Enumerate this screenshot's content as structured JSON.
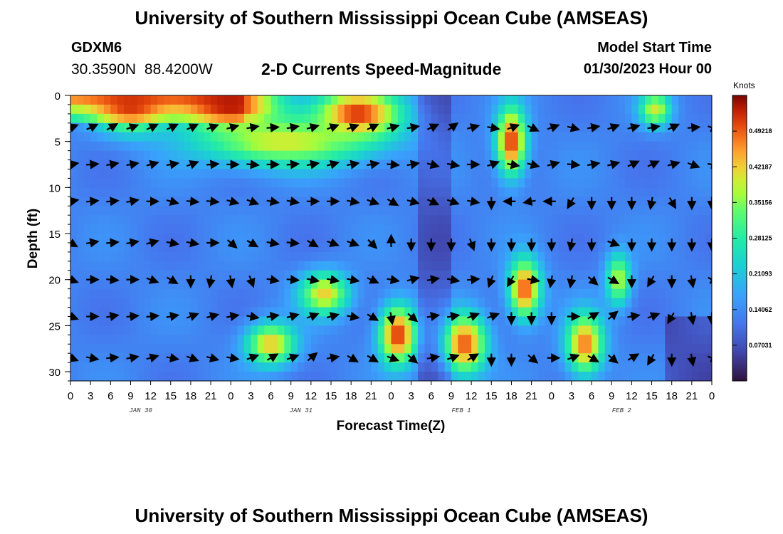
{
  "page": {
    "title": "University of Southern Mississippi Ocean Cube (AMSEAS)",
    "title_repeat": "University of Southern Mississippi Ocean Cube (AMSEAS)",
    "station": "GDXM6",
    "coords": "30.3590N  88.4200W",
    "subtitle": "2-D Currents Speed-Magnitude",
    "start_label": "Model Start Time",
    "start_value": "01/30/2023 Hour 00"
  },
  "chart_data": {
    "type": "heatmap",
    "title": "2-D Currents Speed-Magnitude",
    "xlabel": "Forecast Time(Z)",
    "ylabel": "Depth (ft)",
    "colorbar_title": "Knots",
    "colorbar_ticks": [
      "0.07031",
      "0.14062",
      "0.21093",
      "0.28125",
      "0.35156",
      "0.42187",
      "0.49218"
    ],
    "colorbar_tick_values": [
      0.07031,
      0.14062,
      0.21093,
      0.28125,
      0.35156,
      0.42187,
      0.49218
    ],
    "color_range": [
      0,
      0.5625
    ],
    "x_range_hours": [
      0,
      96
    ],
    "y_range_ft": [
      0,
      31
    ],
    "x_tick_labels": [
      "0",
      "3",
      "6",
      "9",
      "12",
      "15",
      "18",
      "21",
      "0",
      "3",
      "6",
      "9",
      "12",
      "15",
      "18",
      "21",
      "0",
      "3",
      "6",
      "9",
      "12",
      "15",
      "18",
      "21",
      "0",
      "3",
      "6",
      "9",
      "12",
      "15",
      "18",
      "21",
      "0"
    ],
    "y_ticks": [
      0,
      5,
      10,
      15,
      20,
      25,
      30
    ],
    "date_labels": [
      "JAN 30",
      "JAN 31",
      "FEB 1",
      "FEB 2"
    ],
    "date_label_hours": [
      10.5,
      34.5,
      58.5,
      82.5
    ],
    "speed_hotspots_knots": [
      {
        "hour": 9,
        "depth": 1,
        "speed": 0.52,
        "hour_width": 6,
        "depth_width": 3
      },
      {
        "hour": 24,
        "depth": 1,
        "speed": 0.54,
        "hour_width": 8,
        "depth_width": 3
      },
      {
        "hour": 43,
        "depth": 2,
        "speed": 0.52,
        "hour_width": 7,
        "depth_width": 3
      },
      {
        "hour": 32,
        "depth": 5,
        "speed": 0.4,
        "hour_width": 14,
        "depth_width": 3
      },
      {
        "hour": 66,
        "depth": 5,
        "speed": 0.52,
        "hour_width": 2.4,
        "depth_width": 4
      },
      {
        "hour": 87.5,
        "depth": 1.5,
        "speed": 0.4,
        "hour_width": 2.5,
        "depth_width": 2
      },
      {
        "hour": 68,
        "depth": 21,
        "speed": 0.5,
        "hour_width": 2.6,
        "depth_width": 3.5
      },
      {
        "hour": 30,
        "depth": 27,
        "speed": 0.43,
        "hour_width": 4,
        "depth_width": 2.5
      },
      {
        "hour": 38,
        "depth": 21.5,
        "speed": 0.42,
        "hour_width": 4,
        "depth_width": 2.5
      },
      {
        "hour": 49,
        "depth": 26,
        "speed": 0.52,
        "hour_width": 3,
        "depth_width": 3.5
      },
      {
        "hour": 59,
        "depth": 27,
        "speed": 0.5,
        "hour_width": 3.5,
        "depth_width": 3.5
      },
      {
        "hour": 77,
        "depth": 27,
        "speed": 0.48,
        "hour_width": 3,
        "depth_width": 3.5
      },
      {
        "hour": 82,
        "depth": 20,
        "speed": 0.38,
        "hour_width": 2,
        "depth_width": 3
      }
    ],
    "vector_depths_ft": [
      3.5,
      7.5,
      11.5,
      16,
      20,
      24,
      28.5
    ],
    "vector_hour_step": 3,
    "vector_angles_deg": [
      [
        20,
        25,
        30,
        20,
        25,
        25,
        25,
        20,
        15,
        10,
        5,
        10,
        15,
        20,
        20,
        25,
        15,
        10,
        25,
        35,
        15,
        -10,
        20,
        -25,
        20,
        -15,
        10,
        20,
        15,
        10,
        25,
        5,
        -20
      ],
      [
        10,
        5,
        10,
        10,
        15,
        10,
        20,
        5,
        0,
        -5,
        0,
        5,
        10,
        15,
        10,
        10,
        -5,
        10,
        -15,
        -10,
        0,
        20,
        -10,
        -15,
        15,
        -5,
        10,
        15,
        25,
        25,
        15,
        -20,
        -10
      ],
      [
        10,
        5,
        5,
        10,
        0,
        -15,
        -5,
        -5,
        -15,
        -20,
        -10,
        -10,
        0,
        0,
        -10,
        -20,
        -30,
        -15,
        -25,
        -20,
        -10,
        -90,
        -180,
        -170,
        -180,
        -120,
        -90,
        -90,
        -90,
        -100,
        -60,
        -90,
        -90
      ],
      [
        -30,
        10,
        5,
        10,
        15,
        -10,
        -10,
        0,
        -40,
        -30,
        -10,
        -5,
        -30,
        -20,
        -20,
        -45,
        90,
        -90,
        -90,
        -90,
        -70,
        -90,
        -90,
        -90,
        -90,
        -100,
        -90,
        -20,
        -90,
        -90,
        -90,
        -90,
        -90
      ],
      [
        -20,
        0,
        -5,
        0,
        -20,
        -30,
        -90,
        -100,
        -80,
        -70,
        -10,
        -5,
        -10,
        -10,
        -10,
        -25,
        -10,
        15,
        10,
        -10,
        5,
        -110,
        -120,
        -10,
        -100,
        -100,
        -40,
        -30,
        -90,
        -120,
        -90,
        -80,
        -30
      ],
      [
        -20,
        0,
        10,
        5,
        5,
        10,
        20,
        15,
        10,
        -10,
        10,
        15,
        20,
        15,
        -10,
        -30,
        -80,
        -40,
        10,
        10,
        20,
        20,
        -90,
        -90,
        -90,
        0,
        30,
        40,
        10,
        20,
        -120,
        -80,
        -90
      ],
      [
        -20,
        -10,
        5,
        10,
        15,
        -10,
        -20,
        -15,
        -10,
        20,
        30,
        20,
        40,
        10,
        -30,
        -30,
        -20,
        -40,
        10,
        20,
        30,
        -90,
        -90,
        -40,
        0,
        20,
        -30,
        -40,
        30,
        -120,
        -90,
        -80,
        -20
      ]
    ]
  }
}
